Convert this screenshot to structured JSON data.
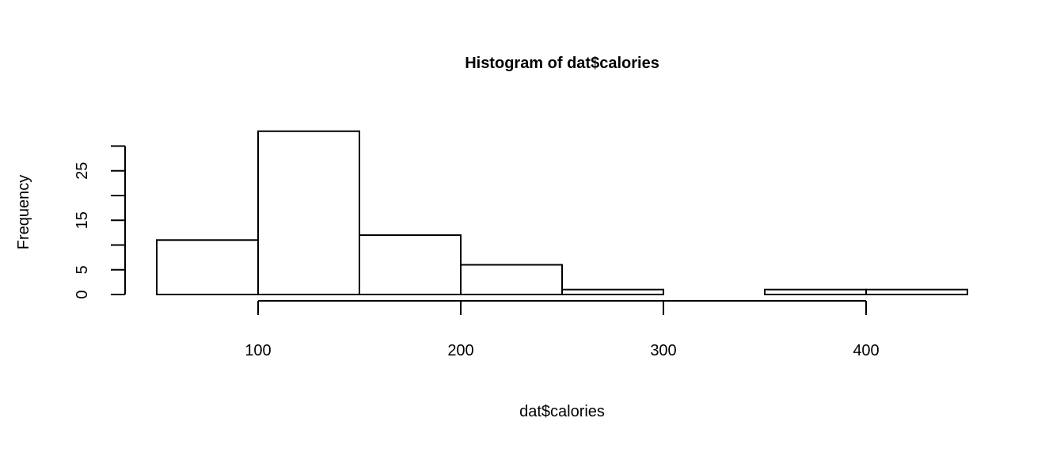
{
  "chart_data": {
    "type": "bar",
    "title": "Histogram of dat$calories",
    "xlabel": "dat$calories",
    "ylabel": "Frequency",
    "bins": [
      {
        "start": 50,
        "end": 100,
        "count": 11
      },
      {
        "start": 100,
        "end": 150,
        "count": 33
      },
      {
        "start": 150,
        "end": 200,
        "count": 12
      },
      {
        "start": 200,
        "end": 250,
        "count": 6
      },
      {
        "start": 250,
        "end": 300,
        "count": 1
      },
      {
        "start": 300,
        "end": 350,
        "count": 0
      },
      {
        "start": 350,
        "end": 400,
        "count": 1
      },
      {
        "start": 400,
        "end": 450,
        "count": 1
      }
    ],
    "x_ticks": [
      100,
      200,
      300,
      400
    ],
    "x_tick_labels": [
      "100",
      "200",
      "300",
      "400"
    ],
    "y_ticks": [
      0,
      5,
      10,
      15,
      20,
      25,
      30
    ],
    "y_tick_labels": [
      "0",
      "5",
      "",
      "15",
      "",
      "25",
      ""
    ],
    "xlim": [
      50,
      450
    ],
    "ylim": [
      0,
      33
    ],
    "grid": false,
    "legend": "none"
  }
}
